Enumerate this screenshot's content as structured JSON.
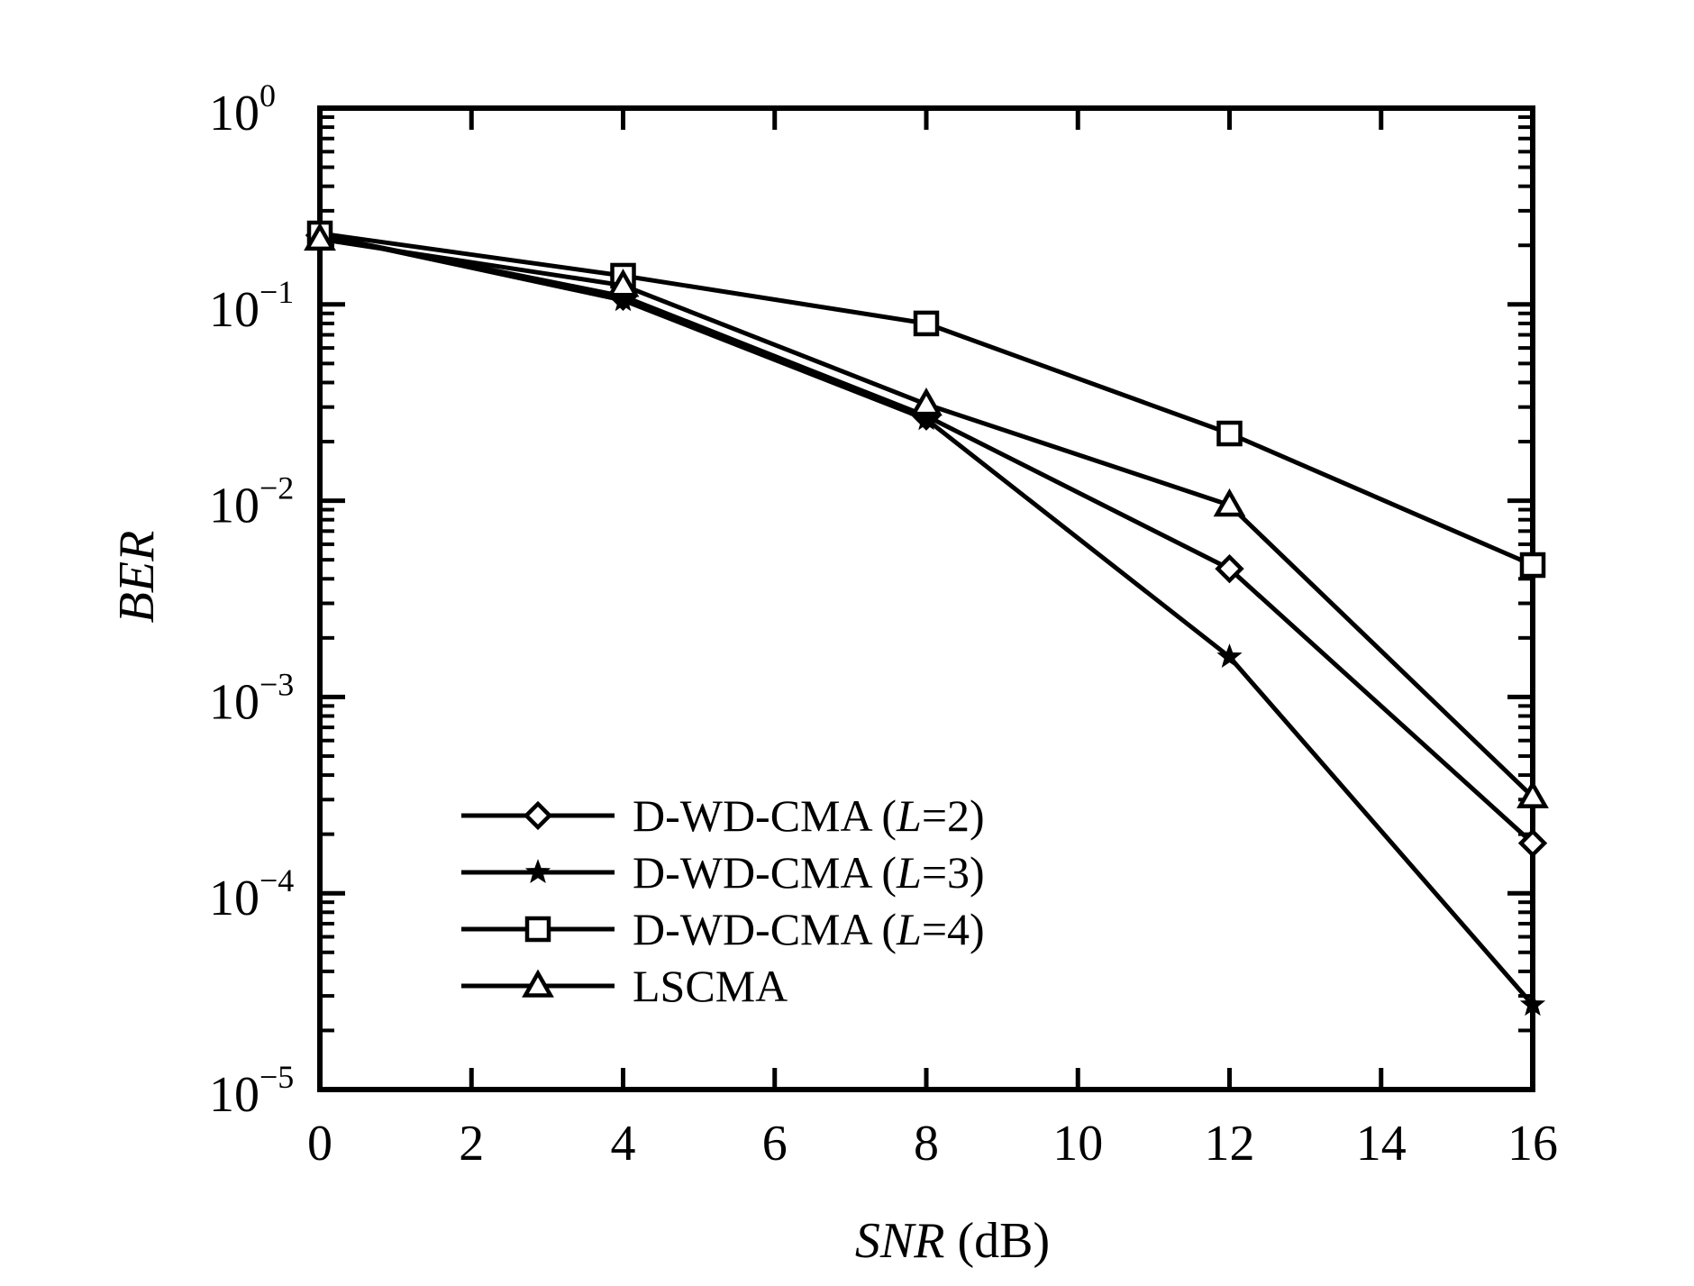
{
  "chart_data": {
    "type": "line",
    "title": "",
    "xlabel": {
      "italic": "SNR",
      "rest": " (dB)"
    },
    "ylabel": "BER",
    "xlim": [
      0,
      16
    ],
    "ylim": [
      1e-05,
      1
    ],
    "yscale": "log",
    "x_ticks": [
      "0",
      "2",
      "4",
      "6",
      "8",
      "10",
      "12",
      "14",
      "16"
    ],
    "x_tick_values": [
      0,
      2,
      4,
      6,
      8,
      10,
      12,
      14,
      16
    ],
    "y_ticks": [
      {
        "base": "10",
        "exp": "0",
        "value": 1
      },
      {
        "base": "10",
        "exp": "−1",
        "value": 0.1
      },
      {
        "base": "10",
        "exp": "−2",
        "value": 0.01
      },
      {
        "base": "10",
        "exp": "−3",
        "value": 0.001
      },
      {
        "base": "10",
        "exp": "−4",
        "value": 0.0001
      },
      {
        "base": "10",
        "exp": "−5",
        "value": 1e-05
      }
    ],
    "x": [
      0,
      4,
      8,
      12,
      16
    ],
    "series": [
      {
        "name": "D-WD-CMA (L=2)",
        "label_prefix": "D-WD-CMA (",
        "label_var": "L",
        "label_suffix": "=2)",
        "marker": "diamond",
        "values": [
          0.225,
          0.11,
          0.027,
          0.0045,
          0.00018
        ]
      },
      {
        "name": "D-WD-CMA (L=3)",
        "label_prefix": "D-WD-CMA (",
        "label_var": "L",
        "label_suffix": "=3)",
        "marker": "star",
        "values": [
          0.225,
          0.105,
          0.026,
          0.0016,
          2.7e-05
        ]
      },
      {
        "name": "D-WD-CMA (L=4)",
        "label_prefix": "D-WD-CMA (",
        "label_var": "L",
        "label_suffix": "=4)",
        "marker": "square",
        "values": [
          0.23,
          0.14,
          0.08,
          0.022,
          0.0047
        ]
      },
      {
        "name": "LSCMA",
        "label_prefix": "LSCMA",
        "label_var": "",
        "label_suffix": "",
        "marker": "triangle",
        "values": [
          0.215,
          0.125,
          0.031,
          0.0095,
          0.00031
        ]
      }
    ],
    "legend_position": "lower-left",
    "grid": false,
    "color": "#000000"
  }
}
